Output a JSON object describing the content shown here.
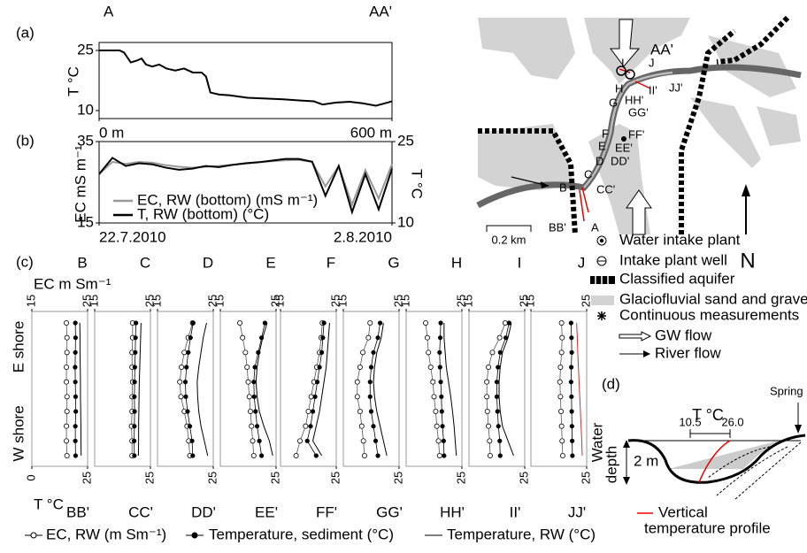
{
  "figure": {
    "panel_labels": [
      "(a)",
      "(b)",
      "(c)",
      "(d)"
    ]
  },
  "chart_data": [
    {
      "type": "line",
      "top_labels": [
        "A",
        "AA'"
      ],
      "ylabel": "T °C",
      "color": "#000000",
      "x": [
        0,
        42,
        51,
        65,
        78,
        87,
        96,
        109,
        123,
        138,
        156,
        174,
        192,
        210,
        219,
        228,
        246,
        268,
        304,
        341,
        377,
        413,
        440,
        458,
        486,
        513,
        540,
        567,
        585,
        600
      ],
      "values": [
        25,
        25,
        24.5,
        22,
        22.5,
        23,
        21.5,
        21,
        21.5,
        20.5,
        20,
        20.5,
        19.5,
        19.5,
        18.5,
        14.5,
        14,
        13.8,
        13.2,
        13,
        12.8,
        12.5,
        12.3,
        11.5,
        12,
        12.2,
        11.8,
        11.2,
        11.8,
        12.3
      ],
      "xlim": [
        0,
        600
      ],
      "ylim": [
        8,
        27
      ],
      "xticks": [
        {
          "value": 0,
          "label": "0 m"
        },
        {
          "value": 600,
          "label": "600 m"
        }
      ],
      "yticks": [
        10,
        25
      ]
    },
    {
      "type": "line",
      "ylabel": "EC mS m⁻¹",
      "y2label": "T °C",
      "x": [
        0,
        0.5,
        1,
        1.5,
        2,
        2.5,
        3,
        3.5,
        4,
        4.5,
        5,
        5.5,
        6,
        6.5,
        7,
        7.5,
        8,
        8.5,
        9,
        9.5,
        10,
        10.5,
        11
      ],
      "series": [
        {
          "name": "EC, RW (bottom) (mS m⁻¹)",
          "color": "#999999",
          "values": [
            27,
            30,
            29.5,
            30,
            29.8,
            29.2,
            28.8,
            28.6,
            28.8,
            29,
            29.3,
            29.6,
            29.9,
            30.2,
            30.4,
            30.5,
            30,
            24,
            29,
            19.5,
            28,
            21,
            29.5
          ]
        },
        {
          "name": "T, RW (bottom) (°C)",
          "color": "#000000",
          "axis": "y2",
          "values": [
            19,
            22,
            20.5,
            21,
            20.8,
            20.2,
            19.8,
            20,
            20.5,
            20.3,
            20.7,
            21,
            21.2,
            21.5,
            21.8,
            21.8,
            21.3,
            15,
            20.5,
            12,
            19,
            12.5,
            20
          ]
        }
      ],
      "xlim": [
        0,
        11
      ],
      "ylim": [
        15,
        35
      ],
      "y2lim": [
        10,
        25
      ],
      "xticks": [
        {
          "value": 0,
          "label": "22.7.2010"
        },
        {
          "value": 11,
          "label": "2.8.2010"
        }
      ],
      "yticks": [
        15,
        35
      ],
      "y2ticks": [
        10,
        25
      ]
    },
    {
      "type": "profiles",
      "top_axis_label": "EC m Sm⁻¹",
      "bottom_axis_label": "T °C",
      "y_labels": [
        "E shore",
        "W shore"
      ],
      "ec_lim": [
        15,
        25
      ],
      "t_lim": [
        0,
        25
      ],
      "series": [
        {
          "name": "EC, RW (m Sm⁻¹)"
        },
        {
          "name": "Temperature, sediment (°C)"
        },
        {
          "name": "Temperature, RW (°C)"
        }
      ],
      "panels": [
        {
          "top": "B",
          "bottom": "BB'",
          "ec_ticks": [
            15,
            25
          ],
          "t_ticks": [
            0,
            25
          ],
          "ec": [
            21.2,
            21.3,
            21.3,
            21.2,
            21.2,
            21.3,
            21.3,
            21.2,
            21.2,
            21.3
          ],
          "sediment": [
            19.5,
            19.6,
            19.5,
            19.4,
            19.5,
            19.6,
            19.7,
            19.5,
            19.5,
            19.6
          ],
          "rw": [
            21.5,
            21.6,
            21.6,
            21.7,
            21.8,
            21.8,
            21.9,
            22,
            22,
            22.1
          ]
        },
        {
          "top": "C",
          "bottom": "CC'",
          "ec_ticks": [
            15,
            25
          ],
          "t_ticks": [
            25
          ],
          "ec": [
            21.8,
            21.8,
            21.7,
            21.7,
            21.8,
            21.7,
            21.7,
            21.6,
            21.7,
            21.7
          ],
          "sediment": [
            18.5,
            18.3,
            18.2,
            18,
            17.9,
            17.8,
            17.9,
            17.8,
            17.7,
            17.8
          ],
          "rw": [
            20.8,
            20.6,
            20.4,
            20.2,
            20,
            19.9,
            19.8,
            19.7,
            19.7,
            19.6
          ]
        },
        {
          "top": "D",
          "bottom": "DD'",
          "ec_ticks": [
            15,
            25
          ],
          "t_ticks": [
            25
          ],
          "ec": [
            21.3,
            20.5,
            19.8,
            19.3,
            19,
            19.2,
            19.8,
            20.3,
            20.6,
            20.8
          ],
          "sediment": [
            16,
            14.8,
            13.8,
            13,
            12.5,
            12.7,
            13.5,
            14.5,
            15.5,
            15.8
          ],
          "rw": [
            22,
            20.5,
            19.5,
            18.5,
            17.8,
            18,
            18.5,
            19.5,
            21,
            22.5
          ]
        },
        {
          "top": "E",
          "bottom": "EE'",
          "ec_ticks": [
            15,
            25
          ],
          "t_ticks": [
            25
          ],
          "ec": [
            18.5,
            19,
            19.5,
            19.8,
            20,
            20.2,
            20.4,
            20.6,
            20.8,
            21
          ],
          "sediment": [
            20,
            18.5,
            17,
            15.5,
            15,
            15.2,
            15.8,
            16.5,
            17.5,
            18.5
          ],
          "rw": [
            21,
            19,
            17.5,
            16.5,
            16,
            16.5,
            17.5,
            19.5,
            22,
            23.5
          ]
        },
        {
          "top": "F",
          "bottom": "FF'",
          "ec_ticks": [
            15,
            25
          ],
          "t_ticks": [
            25
          ],
          "ec": [
            22.5,
            22.3,
            22,
            21.5,
            21,
            20.5,
            20,
            19.5,
            18.5,
            17.8
          ],
          "sediment": [
            19.5,
            19,
            18.5,
            17.5,
            16.5,
            15.5,
            14.5,
            13.5,
            12,
            16
          ],
          "rw": [
            22,
            21.5,
            21,
            20.5,
            19.5,
            18.5,
            17.5,
            16,
            14.5,
            18.5
          ]
        },
        {
          "top": "G",
          "bottom": "GG'",
          "ec_ticks": [
            15,
            25
          ],
          "t_ticks": [
            25
          ],
          "ec": [
            19.8,
            19.5,
            18.5,
            18,
            17.5,
            17.5,
            18,
            18.3,
            18.6,
            18.8
          ],
          "sediment": [
            16.5,
            15.5,
            13.5,
            12.5,
            12,
            12,
            12.5,
            13.5,
            14.5,
            15.5
          ],
          "rw": [
            18,
            17,
            15,
            14,
            13.5,
            14,
            15,
            16.5,
            18,
            19.5
          ]
        },
        {
          "top": "H",
          "bottom": "HH'",
          "ec_ticks": [
            15,
            25
          ],
          "t_ticks": [
            25
          ],
          "ec": [
            18.5,
            18.8,
            19,
            19.4,
            19.8,
            20,
            20.3,
            20.5,
            20.8,
            21
          ],
          "sediment": [
            15.5,
            15.3,
            15,
            15.2,
            15.5,
            15.8,
            16,
            16.3,
            16.8,
            17
          ],
          "rw": [
            17,
            17,
            17.5,
            18,
            19,
            20,
            20.8,
            21.5,
            22,
            22.5
          ]
        },
        {
          "top": "I",
          "bottom": "II'",
          "ec_ticks": [
            15,
            25
          ],
          "t_ticks": [
            25
          ],
          "ec": [
            21.5,
            20.5,
            19.2,
            18.5,
            18.2,
            18.2,
            18.3,
            18.5,
            18.7,
            18.8
          ],
          "sediment": [
            18,
            16.5,
            14,
            13,
            12.5,
            12.5,
            12.8,
            13.2,
            13.8,
            14
          ],
          "rw": [
            19,
            17.5,
            15,
            14,
            13.5,
            13.5,
            14,
            15,
            17.5,
            20
          ]
        },
        {
          "top": "J",
          "bottom": "JJ'",
          "ec_ticks": [
            15,
            25
          ],
          "t_ticks": [
            25
          ],
          "ec": [
            20.5,
            20.6,
            20.5,
            20.3,
            20.2,
            20.3,
            20.4,
            20.5,
            20.6,
            20.7
          ],
          "sediment": [
            18,
            18.2,
            18.3,
            18.1,
            18,
            18.2,
            18.3,
            18.4,
            18.5,
            18.6
          ],
          "rw": [
            20.5,
            20.8,
            21,
            21.3,
            21.6,
            21.9,
            22.2,
            22.5,
            22.8,
            23
          ]
        }
      ]
    }
  ],
  "map": {
    "labels": [
      "A",
      "B",
      "BB'",
      "C",
      "CC'",
      "D",
      "DD'",
      "E",
      "EE'",
      "F",
      "FF'",
      "G",
      "GG'",
      "H",
      "HH'",
      "I",
      "II'",
      "J",
      "JJ'",
      "AA'"
    ],
    "scale": "0.2 km",
    "north": "N",
    "legend": [
      "Water intake plant",
      "Intake plant well",
      "Classified aquifer",
      "Glaciofluvial sand and gravel",
      "Continuous measurements",
      "GW flow",
      "River flow"
    ]
  },
  "diagram": {
    "axis_label": "T °C",
    "range": [
      "10.5",
      "26.0"
    ],
    "spring": "Spring",
    "depth_label": [
      "Water",
      "depth"
    ],
    "depth": "2 m",
    "profile_label": [
      "Vertical",
      "temperature profile"
    ]
  }
}
